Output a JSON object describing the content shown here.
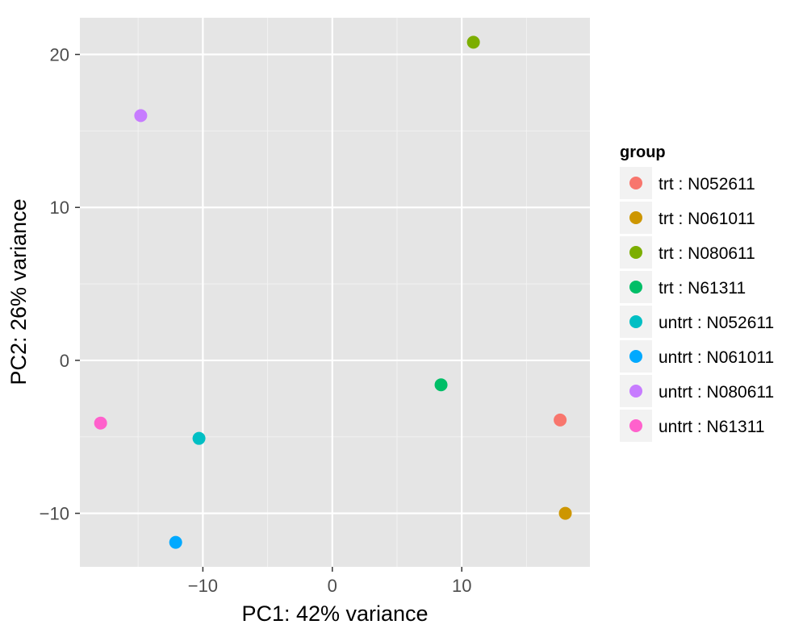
{
  "chart_data": {
    "type": "scatter",
    "xlabel": "PC1: 42% variance",
    "ylabel": "PC2: 26% variance",
    "xlim": [
      -19.5,
      19.9
    ],
    "ylim": [
      -13.5,
      22.4
    ],
    "x_ticks": [
      -10,
      0,
      10
    ],
    "y_ticks": [
      -10,
      0,
      10,
      20
    ],
    "x_tick_labels": [
      "−10",
      "0",
      "10"
    ],
    "y_tick_labels": [
      "−10",
      "0",
      "10",
      "20"
    ],
    "grid": true,
    "legend_position": "right",
    "legend_title": "group",
    "series": [
      {
        "name": "trt : N052611",
        "color": "#F8766D",
        "x": 17.6,
        "y": -3.9
      },
      {
        "name": "trt : N061011",
        "color": "#CD9600",
        "x": 18.0,
        "y": -10.0
      },
      {
        "name": "trt : N080611",
        "color": "#7CAE00",
        "x": 10.9,
        "y": 20.8
      },
      {
        "name": "trt : N61311",
        "color": "#00BE67",
        "x": 8.4,
        "y": -1.6
      },
      {
        "name": "untrt : N052611",
        "color": "#00BFC4",
        "x": -10.3,
        "y": -5.1
      },
      {
        "name": "untrt : N061011",
        "color": "#00A9FF",
        "x": -12.1,
        "y": -11.9
      },
      {
        "name": "untrt : N080611",
        "color": "#C77CFF",
        "x": -14.8,
        "y": 16.0
      },
      {
        "name": "untrt : N61311",
        "color": "#FF61CC",
        "x": -17.9,
        "y": -4.1
      }
    ]
  }
}
